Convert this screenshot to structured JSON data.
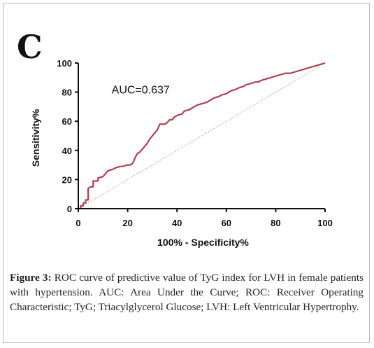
{
  "panel_letter": "C",
  "caption": {
    "label": "Figure 3:",
    "text": " ROC curve of predictive value of TyG index for LVH in female patients with hypertension. AUC: Area Under the Curve; ROC: Receiver Operating Characteristic; TyG; Triacylglycerol Glucose; LVH: Left Ventricular Hypertrophy."
  },
  "colors": {
    "curve": "#b04050",
    "reference": "#a8a8a8",
    "axis": "#111111"
  },
  "chart_data": {
    "type": "line",
    "xlabel": "100% - Specificity%",
    "ylabel": "Sensitivity%",
    "xlim": [
      0,
      100
    ],
    "ylim": [
      0,
      100
    ],
    "x_ticks": [
      "0",
      "20",
      "40",
      "60",
      "80",
      "100"
    ],
    "y_ticks": [
      "0",
      "20",
      "40",
      "60",
      "80",
      "100"
    ],
    "annotations": [
      {
        "text": "AUC=0.637"
      }
    ],
    "reference_line": {
      "x": [
        0,
        100
      ],
      "y": [
        0,
        100
      ],
      "style": "dotted"
    },
    "series": [
      {
        "x": [
          0,
          1,
          1,
          2,
          2,
          3,
          3,
          4,
          4,
          5,
          6,
          6,
          8,
          8,
          10,
          11,
          12,
          14,
          15,
          17,
          18,
          20,
          21,
          22,
          23,
          24,
          25,
          26,
          27,
          28,
          29,
          30,
          31,
          32,
          33,
          35,
          36,
          37,
          38,
          39,
          40,
          42,
          43,
          45,
          46,
          48,
          50,
          52,
          54,
          55,
          57,
          58,
          60,
          61,
          62,
          64,
          65,
          67,
          68,
          70,
          72,
          73,
          74,
          76,
          78,
          80,
          82,
          84,
          86,
          88,
          90,
          92,
          94,
          96,
          98,
          100
        ],
        "y": [
          0,
          0,
          2,
          2,
          4,
          4,
          6,
          6,
          14,
          15,
          15,
          19,
          19,
          21,
          22,
          24,
          26,
          27,
          28,
          29,
          29,
          30,
          30,
          31,
          35,
          38,
          39,
          41,
          43,
          45,
          48,
          50,
          52,
          54,
          58,
          58,
          59,
          61,
          61,
          63,
          64,
          65,
          67,
          68,
          69,
          71,
          72,
          73,
          75,
          76,
          77,
          78,
          79,
          80,
          81,
          82,
          83,
          84,
          85,
          86,
          87,
          87,
          88,
          89,
          90,
          91,
          92,
          93,
          93,
          94,
          95,
          96,
          97,
          98,
          99,
          100
        ]
      }
    ]
  }
}
